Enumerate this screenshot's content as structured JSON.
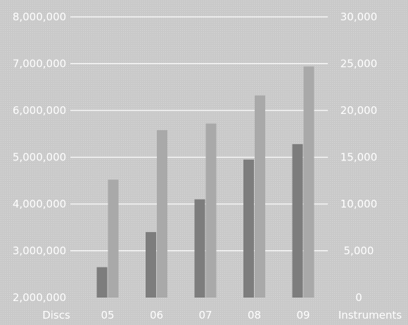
{
  "chart_data": {
    "type": "bar",
    "categories": [
      "05",
      "06",
      "07",
      "08",
      "09"
    ],
    "series": [
      {
        "axis": "left",
        "values": [
          2650000,
          3400000,
          4100000,
          4950000,
          5280000
        ],
        "color": "#7d7d7d"
      },
      {
        "axis": "right",
        "values": [
          12600,
          17900,
          18600,
          21600,
          24700
        ],
        "color": "#a9a9a9"
      }
    ],
    "left_axis": {
      "label": "Discs",
      "ylim": [
        2000000,
        8000000
      ],
      "ticks": [
        2000000,
        3000000,
        4000000,
        5000000,
        6000000,
        7000000,
        8000000
      ],
      "tick_labels": [
        "2,000,000",
        "3,000,000",
        "4,000,000",
        "5,000,000",
        "6,000,000",
        "7,000,000",
        "8,000,000"
      ]
    },
    "right_axis": {
      "label": "Instruments",
      "ylim": [
        0,
        30000
      ],
      "ticks": [
        0,
        5000,
        10000,
        15000,
        20000,
        25000,
        30000
      ],
      "tick_labels": [
        "0",
        "5,000",
        "10,000",
        "15,000",
        "20,000",
        "25,000",
        "30,000"
      ]
    },
    "grid": true,
    "gridline_color": "#ffffff",
    "text_color": "#ffffff"
  }
}
